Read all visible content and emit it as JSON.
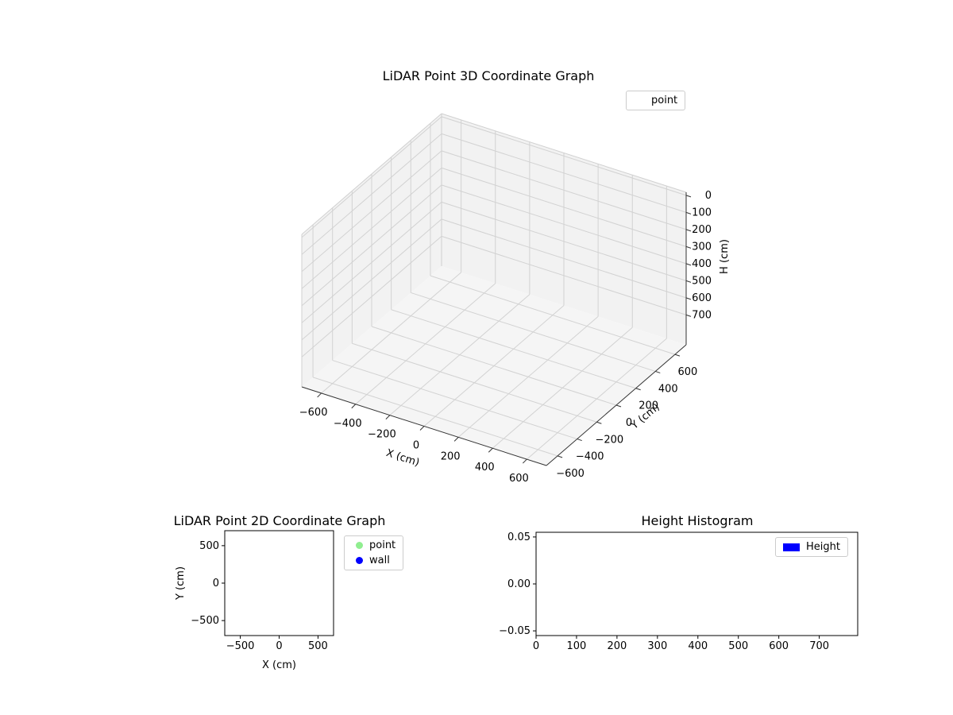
{
  "figure": {
    "background": "#ffffff"
  },
  "chart_data": [
    {
      "id": "lidar-3d",
      "type": "scatter3d",
      "title": "LiDAR Point 3D Coordinate Graph",
      "xlabel": "X (cm)",
      "ylabel": "Y (cm)",
      "zlabel": "H (cm)",
      "x_tick_labels": [
        "−600",
        "−400",
        "−200",
        "0",
        "200",
        "400",
        "600"
      ],
      "y_tick_labels": [
        "−600",
        "−400",
        "−200",
        "0",
        "200",
        "400",
        "600"
      ],
      "z_tick_labels": [
        "0",
        "100",
        "200",
        "300",
        "400",
        "500",
        "600",
        "700"
      ],
      "z_axis_inverted": true,
      "grid": true,
      "legend": {
        "position": "upper right outside axes",
        "entries": [
          {
            "label": "point",
            "marker": "circle",
            "marker_color": "#ffffff"
          }
        ]
      },
      "series": [
        {
          "name": "point",
          "points": []
        }
      ],
      "style": {
        "pane_color": "#f2f2f2",
        "floor_color": "#f5f5f5",
        "grid_color": "#d2d2d2",
        "edge_color": "#d0d0d0",
        "axis_color": "#333333"
      }
    },
    {
      "id": "lidar-2d",
      "type": "scatter",
      "title": "LiDAR Point 2D Coordinate Graph",
      "xlabel": "X (cm)",
      "ylabel": "Y (cm)",
      "xlim": [
        -700,
        700
      ],
      "ylim": [
        -700,
        700
      ],
      "x_tick_values": [
        -500,
        0,
        500
      ],
      "x_tick_labels": [
        "−500",
        "0",
        "500"
      ],
      "y_tick_values": [
        500,
        0,
        -500
      ],
      "y_tick_labels": [
        "500",
        "0",
        "−500"
      ],
      "grid": false,
      "legend": {
        "position": "outside right",
        "entries": [
          {
            "label": "point",
            "marker": "circle",
            "marker_color": "#90ee90"
          },
          {
            "label": "wall",
            "marker": "circle",
            "marker_color": "#0000ff"
          }
        ]
      },
      "series": [
        {
          "name": "point",
          "points": []
        },
        {
          "name": "wall",
          "points": []
        }
      ]
    },
    {
      "id": "height-histogram",
      "type": "bar",
      "title": "Height Histogram",
      "xlabel": "",
      "ylabel": "",
      "xlim": [
        0,
        795
      ],
      "ylim": [
        -0.055,
        0.055
      ],
      "x_tick_values": [
        0,
        100,
        200,
        300,
        400,
        500,
        600,
        700
      ],
      "x_tick_labels": [
        "0",
        "100",
        "200",
        "300",
        "400",
        "500",
        "600",
        "700"
      ],
      "y_tick_values": [
        0.05,
        0,
        -0.05
      ],
      "y_tick_labels": [
        "0.05",
        "0.00",
        "−0.05"
      ],
      "grid": false,
      "legend": {
        "position": "upper right",
        "entries": [
          {
            "label": "Height",
            "marker": "rect",
            "marker_color": "#0000ff"
          }
        ]
      },
      "values": []
    }
  ]
}
